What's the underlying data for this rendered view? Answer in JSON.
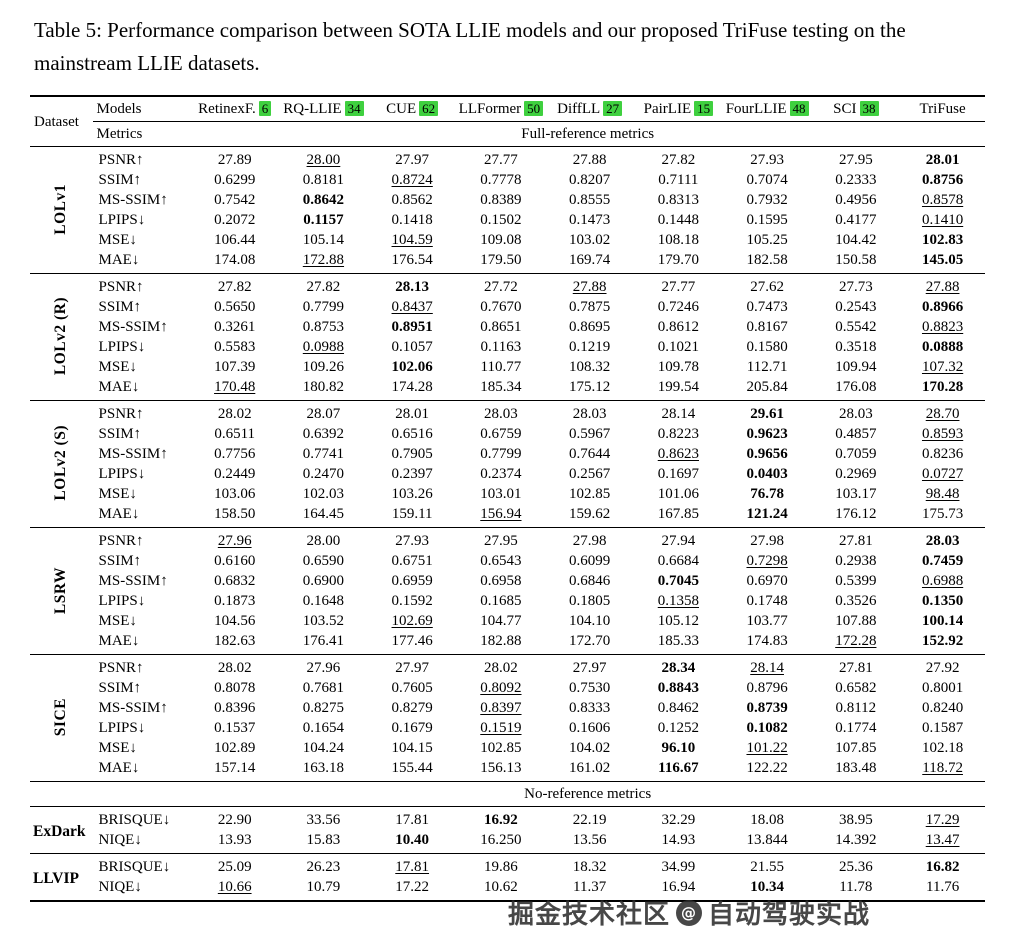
{
  "caption": "Table 5: Performance comparison between SOTA LLIE models and our proposed TriFuse testing on the mainstream LLIE datasets.",
  "colors": {
    "citation_bg": "#3fd03f",
    "rule": "#000000"
  },
  "watermark": {
    "prefix": "掘金技术社区",
    "separator": "@",
    "suffix": "自动驾驶实战"
  },
  "table": {
    "header": {
      "dataset": "Dataset",
      "models": "Models",
      "metrics": "Metrics"
    },
    "models": [
      {
        "name": "RetinexF.",
        "cite": "6"
      },
      {
        "name": "RQ-LLIE",
        "cite": "34"
      },
      {
        "name": "CUE",
        "cite": "62"
      },
      {
        "name": "LLFormer",
        "cite": "50"
      },
      {
        "name": "DiffLL",
        "cite": "27"
      },
      {
        "name": "PairLIE",
        "cite": "15"
      },
      {
        "name": "FourLLIE",
        "cite": "48"
      },
      {
        "name": "SCI",
        "cite": "38"
      },
      {
        "name": "TriFuse",
        "cite": null
      }
    ],
    "sections": [
      {
        "label": "Full-reference metrics",
        "groups": [
          {
            "label": "LOLv1",
            "vertical": true,
            "rows": [
              {
                "metric": "PSNR↑",
                "values": [
                  "27.89",
                  {
                    "t": "28.00",
                    "u": true
                  },
                  "27.97",
                  "27.77",
                  "27.88",
                  "27.82",
                  "27.93",
                  "27.95",
                  {
                    "t": "28.01",
                    "b": true
                  }
                ]
              },
              {
                "metric": "SSIM↑",
                "values": [
                  "0.6299",
                  "0.8181",
                  {
                    "t": "0.8724",
                    "u": true
                  },
                  "0.7778",
                  "0.8207",
                  "0.7111",
                  "0.7074",
                  "0.2333",
                  {
                    "t": "0.8756",
                    "b": true
                  }
                ]
              },
              {
                "metric": "MS-SSIM↑",
                "values": [
                  "0.7542",
                  {
                    "t": "0.8642",
                    "b": true
                  },
                  "0.8562",
                  "0.8389",
                  "0.8555",
                  "0.8313",
                  "0.7932",
                  "0.4956",
                  {
                    "t": "0.8578",
                    "u": true
                  }
                ]
              },
              {
                "metric": "LPIPS↓",
                "values": [
                  "0.2072",
                  {
                    "t": "0.1157",
                    "b": true
                  },
                  "0.1418",
                  "0.1502",
                  "0.1473",
                  "0.1448",
                  "0.1595",
                  "0.4177",
                  {
                    "t": "0.1410",
                    "u": true
                  }
                ]
              },
              {
                "metric": "MSE↓",
                "values": [
                  "106.44",
                  "105.14",
                  {
                    "t": "104.59",
                    "u": true
                  },
                  "109.08",
                  "103.02",
                  "108.18",
                  "105.25",
                  "104.42",
                  {
                    "t": "102.83",
                    "b": true
                  }
                ]
              },
              {
                "metric": "MAE↓",
                "values": [
                  "174.08",
                  {
                    "t": "172.88",
                    "u": true
                  },
                  "176.54",
                  "179.50",
                  "169.74",
                  "179.70",
                  "182.58",
                  "150.58",
                  {
                    "t": "145.05",
                    "b": true
                  }
                ]
              }
            ]
          },
          {
            "label": "LOLv2 (R)",
            "vertical": true,
            "rows": [
              {
                "metric": "PSNR↑",
                "values": [
                  "27.82",
                  "27.82",
                  {
                    "t": "28.13",
                    "b": true
                  },
                  "27.72",
                  {
                    "t": "27.88",
                    "u": true
                  },
                  "27.77",
                  "27.62",
                  "27.73",
                  {
                    "t": "27.88",
                    "u": true
                  }
                ]
              },
              {
                "metric": "SSIM↑",
                "values": [
                  "0.5650",
                  "0.7799",
                  {
                    "t": "0.8437",
                    "u": true
                  },
                  "0.7670",
                  "0.7875",
                  "0.7246",
                  "0.7473",
                  "0.2543",
                  {
                    "t": "0.8966",
                    "b": true
                  }
                ]
              },
              {
                "metric": "MS-SSIM↑",
                "values": [
                  "0.3261",
                  "0.8753",
                  {
                    "t": "0.8951",
                    "b": true
                  },
                  "0.8651",
                  "0.8695",
                  "0.8612",
                  "0.8167",
                  "0.5542",
                  {
                    "t": "0.8823",
                    "u": true
                  }
                ]
              },
              {
                "metric": "LPIPS↓",
                "values": [
                  "0.5583",
                  {
                    "t": "0.0988",
                    "u": true
                  },
                  "0.1057",
                  "0.1163",
                  "0.1219",
                  "0.1021",
                  "0.1580",
                  "0.3518",
                  {
                    "t": "0.0888",
                    "b": true
                  }
                ]
              },
              {
                "metric": "MSE↓",
                "values": [
                  "107.39",
                  "109.26",
                  {
                    "t": "102.06",
                    "b": true
                  },
                  "110.77",
                  "108.32",
                  "109.78",
                  "112.71",
                  "109.94",
                  {
                    "t": "107.32",
                    "u": true
                  }
                ]
              },
              {
                "metric": "MAE↓",
                "values": [
                  {
                    "t": "170.48",
                    "u": true
                  },
                  "180.82",
                  "174.28",
                  "185.34",
                  "175.12",
                  "199.54",
                  "205.84",
                  "176.08",
                  {
                    "t": "170.28",
                    "b": true
                  }
                ]
              }
            ]
          },
          {
            "label": "LOLv2 (S)",
            "vertical": true,
            "rows": [
              {
                "metric": "PSNR↑",
                "values": [
                  "28.02",
                  "28.07",
                  "28.01",
                  "28.03",
                  "28.03",
                  "28.14",
                  {
                    "t": "29.61",
                    "b": true
                  },
                  "28.03",
                  {
                    "t": "28.70",
                    "u": true
                  }
                ]
              },
              {
                "metric": "SSIM↑",
                "values": [
                  "0.6511",
                  "0.6392",
                  "0.6516",
                  "0.6759",
                  "0.5967",
                  "0.8223",
                  {
                    "t": "0.9623",
                    "b": true
                  },
                  "0.4857",
                  {
                    "t": "0.8593",
                    "u": true
                  }
                ]
              },
              {
                "metric": "MS-SSIM↑",
                "values": [
                  "0.7756",
                  "0.7741",
                  "0.7905",
                  "0.7799",
                  "0.7644",
                  {
                    "t": "0.8623",
                    "u": true
                  },
                  {
                    "t": "0.9656",
                    "b": true
                  },
                  "0.7059",
                  "0.8236"
                ]
              },
              {
                "metric": "LPIPS↓",
                "values": [
                  "0.2449",
                  "0.2470",
                  "0.2397",
                  "0.2374",
                  "0.2567",
                  "0.1697",
                  {
                    "t": "0.0403",
                    "b": true
                  },
                  "0.2969",
                  {
                    "t": "0.0727",
                    "u": true
                  }
                ]
              },
              {
                "metric": "MSE↓",
                "values": [
                  "103.06",
                  "102.03",
                  "103.26",
                  "103.01",
                  "102.85",
                  "101.06",
                  {
                    "t": "76.78",
                    "b": true
                  },
                  "103.17",
                  {
                    "t": "98.48",
                    "u": true
                  }
                ]
              },
              {
                "metric": "MAE↓",
                "values": [
                  "158.50",
                  "164.45",
                  "159.11",
                  {
                    "t": "156.94",
                    "u": true
                  },
                  "159.62",
                  "167.85",
                  {
                    "t": "121.24",
                    "b": true
                  },
                  "176.12",
                  "175.73"
                ]
              }
            ]
          },
          {
            "label": "LSRW",
            "vertical": true,
            "rows": [
              {
                "metric": "PSNR↑",
                "values": [
                  {
                    "t": "27.96",
                    "u": true
                  },
                  "28.00",
                  "27.93",
                  "27.95",
                  "27.98",
                  "27.94",
                  "27.98",
                  "27.81",
                  {
                    "t": "28.03",
                    "b": true
                  }
                ]
              },
              {
                "metric": "SSIM↑",
                "values": [
                  "0.6160",
                  "0.6590",
                  "0.6751",
                  "0.6543",
                  "0.6099",
                  "0.6684",
                  {
                    "t": "0.7298",
                    "u": true
                  },
                  "0.2938",
                  {
                    "t": "0.7459",
                    "b": true
                  }
                ]
              },
              {
                "metric": "MS-SSIM↑",
                "values": [
                  "0.6832",
                  "0.6900",
                  "0.6959",
                  "0.6958",
                  "0.6846",
                  {
                    "t": "0.7045",
                    "b": true
                  },
                  "0.6970",
                  "0.5399",
                  {
                    "t": "0.6988",
                    "u": true
                  }
                ]
              },
              {
                "metric": "LPIPS↓",
                "values": [
                  "0.1873",
                  "0.1648",
                  "0.1592",
                  "0.1685",
                  "0.1805",
                  {
                    "t": "0.1358",
                    "u": true
                  },
                  "0.1748",
                  "0.3526",
                  {
                    "t": "0.1350",
                    "b": true
                  }
                ]
              },
              {
                "metric": "MSE↓",
                "values": [
                  "104.56",
                  "103.52",
                  {
                    "t": "102.69",
                    "u": true
                  },
                  "104.77",
                  "104.10",
                  "105.12",
                  "103.77",
                  "107.88",
                  {
                    "t": "100.14",
                    "b": true
                  }
                ]
              },
              {
                "metric": "MAE↓",
                "values": [
                  "182.63",
                  "176.41",
                  "177.46",
                  "182.88",
                  "172.70",
                  "185.33",
                  "174.83",
                  {
                    "t": "172.28",
                    "u": true
                  },
                  {
                    "t": "152.92",
                    "b": true
                  }
                ]
              }
            ]
          },
          {
            "label": "SICE",
            "vertical": true,
            "rows": [
              {
                "metric": "PSNR↑",
                "values": [
                  "28.02",
                  "27.96",
                  "27.97",
                  "28.02",
                  "27.97",
                  {
                    "t": "28.34",
                    "b": true
                  },
                  {
                    "t": "28.14",
                    "u": true
                  },
                  "27.81",
                  "27.92"
                ]
              },
              {
                "metric": "SSIM↑",
                "values": [
                  "0.8078",
                  "0.7681",
                  "0.7605",
                  {
                    "t": "0.8092",
                    "u": true
                  },
                  "0.7530",
                  {
                    "t": "0.8843",
                    "b": true
                  },
                  "0.8796",
                  "0.6582",
                  "0.8001"
                ]
              },
              {
                "metric": "MS-SSIM↑",
                "values": [
                  "0.8396",
                  "0.8275",
                  "0.8279",
                  {
                    "t": "0.8397",
                    "u": true
                  },
                  "0.8333",
                  "0.8462",
                  {
                    "t": "0.8739",
                    "b": true
                  },
                  "0.8112",
                  "0.8240"
                ]
              },
              {
                "metric": "LPIPS↓",
                "values": [
                  "0.1537",
                  "0.1654",
                  "0.1679",
                  {
                    "t": "0.1519",
                    "u": true
                  },
                  "0.1606",
                  "0.1252",
                  {
                    "t": "0.1082",
                    "b": true
                  },
                  "0.1774",
                  "0.1587"
                ]
              },
              {
                "metric": "MSE↓",
                "values": [
                  "102.89",
                  "104.24",
                  "104.15",
                  "102.85",
                  "104.02",
                  {
                    "t": "96.10",
                    "b": true
                  },
                  {
                    "t": "101.22",
                    "u": true
                  },
                  "107.85",
                  "102.18"
                ]
              },
              {
                "metric": "MAE↓",
                "values": [
                  "157.14",
                  "163.18",
                  "155.44",
                  "156.13",
                  "161.02",
                  {
                    "t": "116.67",
                    "b": true
                  },
                  "122.22",
                  "183.48",
                  {
                    "t": "118.72",
                    "u": true
                  }
                ]
              }
            ]
          }
        ]
      },
      {
        "label": "No-reference metrics",
        "groups": [
          {
            "label": "ExDark",
            "vertical": false,
            "rows": [
              {
                "metric": "BRISQUE↓",
                "values": [
                  "22.90",
                  "33.56",
                  "17.81",
                  {
                    "t": "16.92",
                    "b": true
                  },
                  "22.19",
                  "32.29",
                  "18.08",
                  "38.95",
                  {
                    "t": "17.29",
                    "u": true
                  }
                ]
              },
              {
                "metric": "NIQE↓",
                "values": [
                  "13.93",
                  "15.83",
                  {
                    "t": "10.40",
                    "b": true
                  },
                  "16.250",
                  "13.56",
                  "14.93",
                  "13.844",
                  "14.392",
                  {
                    "t": "13.47",
                    "u": true
                  }
                ]
              }
            ]
          },
          {
            "label": "LLVIP",
            "vertical": false,
            "rows": [
              {
                "metric": "BRISQUE↓",
                "values": [
                  "25.09",
                  "26.23",
                  {
                    "t": "17.81",
                    "u": true
                  },
                  "19.86",
                  "18.32",
                  "34.99",
                  "21.55",
                  "25.36",
                  {
                    "t": "16.82",
                    "b": true
                  }
                ]
              },
              {
                "metric": "NIQE↓",
                "values": [
                  {
                    "t": "10.66",
                    "u": true
                  },
                  "10.79",
                  "17.22",
                  "10.62",
                  "11.37",
                  "16.94",
                  {
                    "t": "10.34",
                    "b": true
                  },
                  "11.78",
                  "11.76"
                ]
              }
            ]
          }
        ]
      }
    ]
  }
}
